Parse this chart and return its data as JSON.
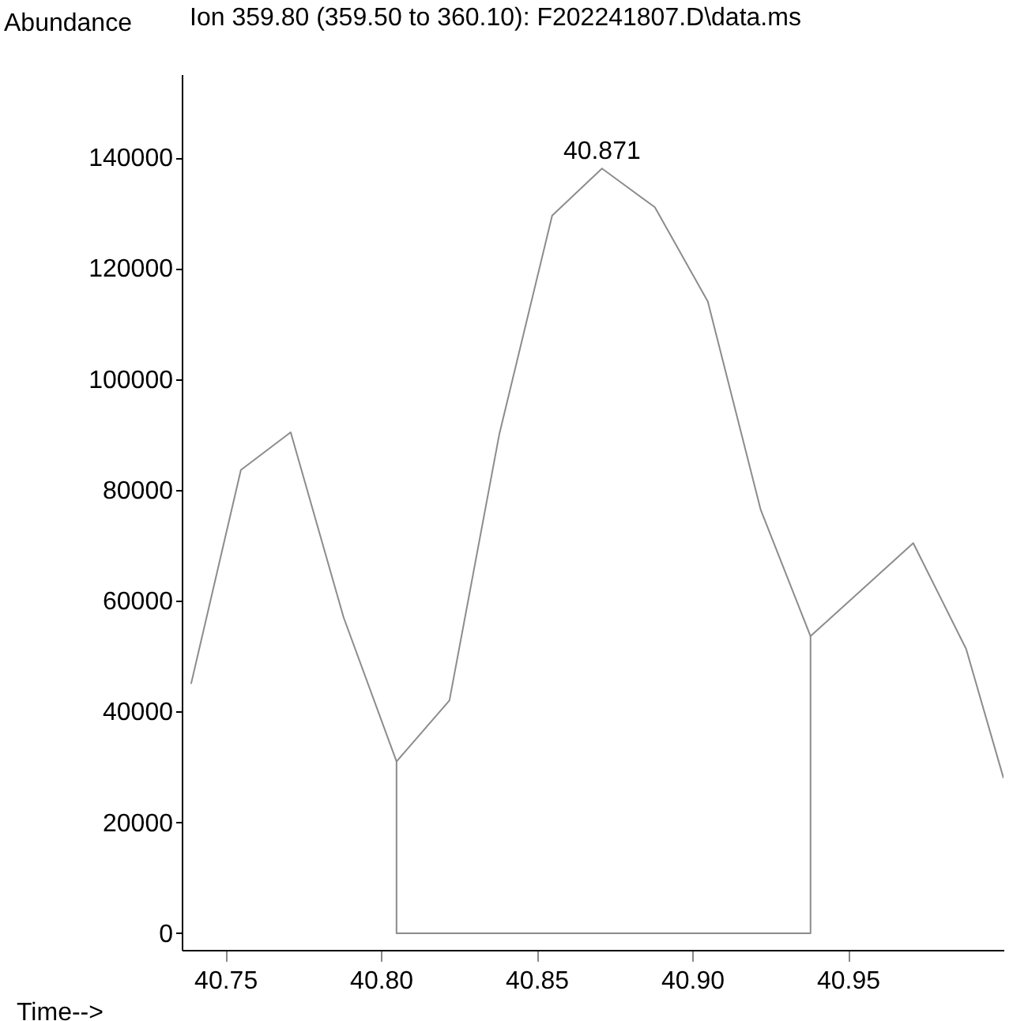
{
  "chart_data": {
    "type": "line",
    "title": "Ion 359.80 (359.50 to 360.10): F202241807.D\\data.ms",
    "xlabel": "Time-->",
    "ylabel": "Abundance",
    "xlim": [
      40.736,
      41.0
    ],
    "ylim": [
      -3000,
      155000
    ],
    "xticks": [
      40.75,
      {
        "value": 40.8,
        "label": "40.80"
      },
      40.85,
      {
        "value": 40.9,
        "label": "40.90"
      },
      40.95
    ],
    "yticks": [
      0,
      20000,
      40000,
      60000,
      80000,
      100000,
      120000,
      140000
    ],
    "grid": false,
    "marker": "none",
    "line_style": "solid",
    "series": [
      {
        "color": "#8c8c8c",
        "x": [
          40.739,
          40.755,
          40.771,
          40.788,
          40.805,
          40.822,
          40.838,
          40.855,
          40.871,
          40.888,
          40.905,
          40.922,
          40.938,
          40.971,
          40.988,
          41.0
        ],
        "values": [
          45000,
          83600,
          90400,
          57000,
          31000,
          42000,
          90000,
          129500,
          138000,
          131000,
          114000,
          76400,
          53600,
          70400,
          51300,
          28000
        ]
      },
      {
        "color": "#8c8c8c",
        "x": [
          40.805,
          40.805,
          40.938,
          40.938
        ],
        "values": [
          31000,
          0,
          0,
          53600
        ]
      }
    ],
    "annotations": [
      {
        "text": "40.871",
        "x": 40.871,
        "y": 138000
      }
    ]
  }
}
